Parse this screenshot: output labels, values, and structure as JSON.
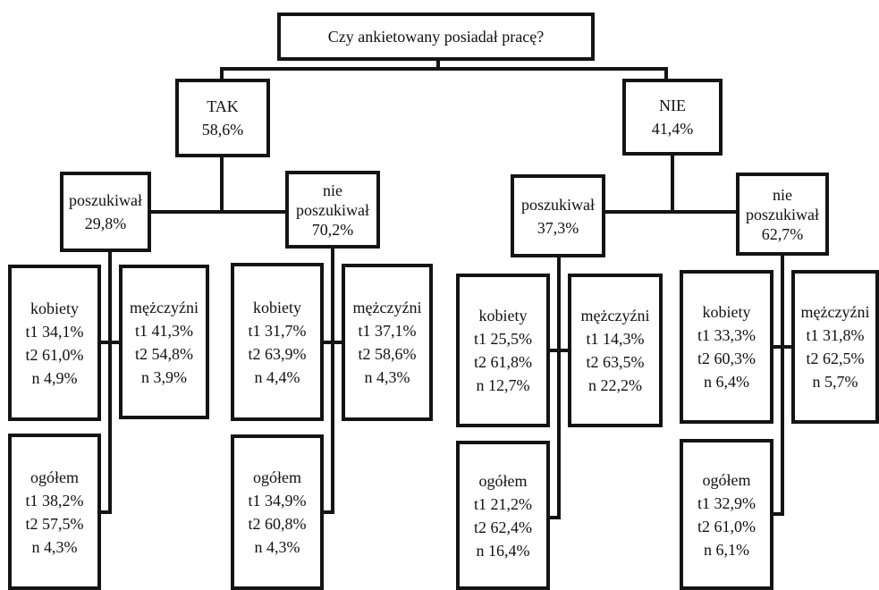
{
  "diagram": {
    "question": "Czy ankietowany posiadał pracę?",
    "branches": [
      {
        "label": "TAK",
        "value": "58,6%",
        "groups": [
          {
            "label": "poszukiwał",
            "value": "29,8%",
            "women": [
              "kobiety",
              "t1 34,1%",
              "t2 61,0%",
              "n 4,9%"
            ],
            "men": [
              "mężczyźni",
              "t1 41,3%",
              "t2 54,8%",
              "n 3,9%"
            ],
            "total": [
              "ogółem",
              "t1 38,2%",
              "t2 57,5%",
              "n 4,3%"
            ]
          },
          {
            "label1": "nie",
            "label2": "poszukiwał",
            "value": "70,2%",
            "women": [
              "kobiety",
              "t1 31,7%",
              "t2 63,9%",
              "n 4,4%"
            ],
            "men": [
              "mężczyźni",
              "t1 37,1%",
              "t2 58,6%",
              "n 4,3%"
            ],
            "total": [
              "ogółem",
              "t1 34,9%",
              "t2 60,8%",
              "n 4,3%"
            ]
          }
        ]
      },
      {
        "label": "NIE",
        "value": "41,4%",
        "groups": [
          {
            "label": "poszukiwał",
            "value": "37,3%",
            "women": [
              "kobiety",
              "t1 25,5%",
              "t2 61,8%",
              "n 12,7%"
            ],
            "men": [
              "mężczyźni",
              "t1 14,3%",
              "t2 63,5%",
              "n 22,2%"
            ],
            "total": [
              "ogółem",
              "t1 21,2%",
              "t2 62,4%",
              "n 16,4%"
            ]
          },
          {
            "label1": "nie",
            "label2": "poszukiwał",
            "value": "62,7%",
            "women": [
              "kobiety",
              "t1 33,3%",
              "t2 60,3%",
              "n 6,4%"
            ],
            "men": [
              "mężczyźni",
              "t1 31,8%",
              "t2 62,5%",
              "n 5,7%"
            ],
            "total": [
              "ogółem",
              "t1 32,9%",
              "t2 61,0%",
              "n 6,1%"
            ]
          }
        ]
      }
    ]
  }
}
